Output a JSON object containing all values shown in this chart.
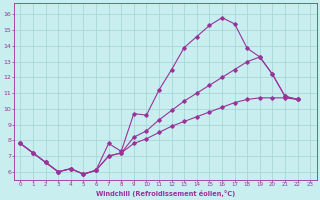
{
  "xlabel": "Windchill (Refroidissement éolien,°C)",
  "bg_color": "#c8eef0",
  "line_color": "#993399",
  "grid_color": "#a8d8d8",
  "spine_color": "#993399",
  "x_ticks": [
    0,
    1,
    2,
    3,
    4,
    5,
    6,
    7,
    8,
    9,
    10,
    11,
    12,
    13,
    14,
    15,
    16,
    17,
    18,
    19,
    20,
    21,
    22,
    23
  ],
  "y_ticks": [
    6,
    7,
    8,
    9,
    10,
    11,
    12,
    13,
    14,
    15,
    16
  ],
  "ylim": [
    5.5,
    16.7
  ],
  "xlim": [
    -0.5,
    23.5
  ],
  "line1_y": [
    7.8,
    7.2,
    6.6,
    6.0,
    6.2,
    5.85,
    6.1,
    7.8,
    7.3,
    9.7,
    9.6,
    11.2,
    12.5,
    13.9,
    14.6,
    15.3,
    15.8,
    15.4,
    13.85,
    13.3,
    12.2,
    10.8,
    10.6,
    null
  ],
  "line2_y": [
    7.8,
    7.2,
    6.6,
    6.0,
    6.2,
    5.85,
    6.1,
    7.0,
    7.2,
    8.2,
    8.6,
    9.3,
    9.9,
    10.5,
    11.0,
    11.5,
    12.0,
    12.5,
    13.0,
    13.3,
    12.2,
    10.8,
    10.6,
    null
  ],
  "line3_y": [
    7.8,
    7.2,
    6.6,
    6.0,
    6.2,
    5.85,
    6.1,
    7.0,
    7.2,
    7.8,
    8.1,
    8.5,
    8.9,
    9.2,
    9.5,
    9.8,
    10.1,
    10.4,
    10.6,
    10.7,
    10.7,
    10.7,
    10.6,
    null
  ]
}
